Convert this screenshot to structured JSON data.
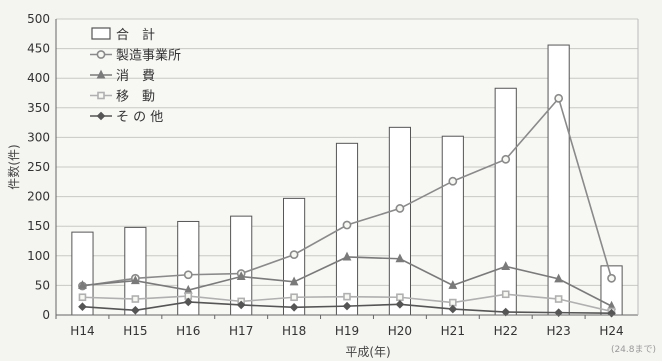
{
  "chart_data": {
    "type": "bar",
    "categories": [
      "H14",
      "H15",
      "H16",
      "H17",
      "H18",
      "H19",
      "H20",
      "H21",
      "H22",
      "H23",
      "H24"
    ],
    "xlabel": "平成(年)",
    "ylabel": "件数(件)",
    "ylim": [
      0,
      500
    ],
    "yticks": [
      0,
      50,
      100,
      150,
      200,
      250,
      300,
      350,
      400,
      450,
      500
    ],
    "grid": true,
    "legend_position": "top-left",
    "note": "(24.8まで)",
    "series": [
      {
        "name": "合　計",
        "kind": "bar",
        "marker": "box",
        "color": "#555555",
        "values": [
          140,
          148,
          158,
          167,
          197,
          290,
          317,
          302,
          383,
          456,
          83
        ]
      },
      {
        "name": "製造事業所",
        "kind": "line",
        "marker": "circle",
        "color": "#8a8a8a",
        "values": [
          49,
          62,
          68,
          70,
          102,
          152,
          180,
          226,
          263,
          366,
          62
        ]
      },
      {
        "name": "消　費",
        "kind": "line",
        "marker": "triangle",
        "color": "#7a7a7a",
        "values": [
          50,
          58,
          42,
          65,
          56,
          98,
          95,
          50,
          82,
          61,
          15
        ]
      },
      {
        "name": "移　動",
        "kind": "line",
        "marker": "square",
        "color": "#b0b0b0",
        "values": [
          30,
          27,
          32,
          23,
          30,
          31,
          30,
          21,
          35,
          27,
          6
        ]
      },
      {
        "name": "そ の 他",
        "kind": "line",
        "marker": "diamond",
        "color": "#555555",
        "values": [
          14,
          8,
          22,
          17,
          13,
          15,
          18,
          10,
          5,
          4,
          3
        ]
      }
    ]
  }
}
